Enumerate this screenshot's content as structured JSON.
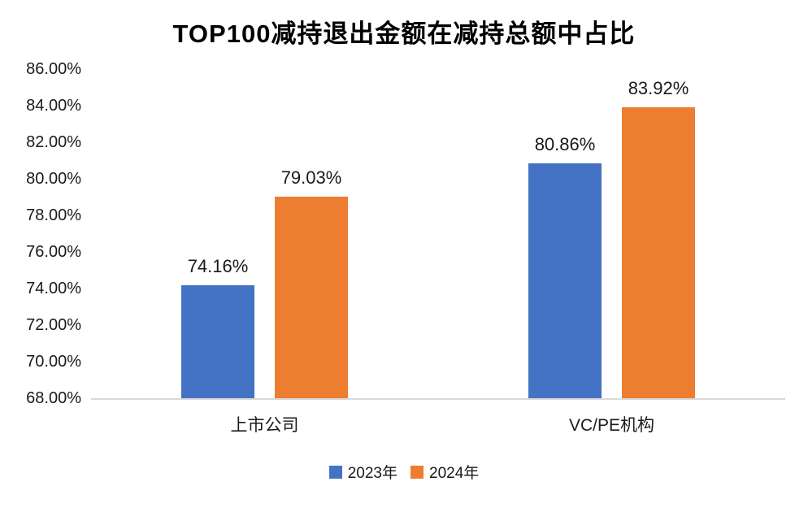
{
  "chart_data": {
    "type": "bar",
    "title": "TOP100减持退出金额在减持总额中占比",
    "categories": [
      "上市公司",
      "VC/PE机构"
    ],
    "series": [
      {
        "name": "2023年",
        "color": "#4472C4",
        "values": [
          74.16,
          80.86
        ],
        "value_labels": [
          "74.16%",
          "80.86%"
        ]
      },
      {
        "name": "2024年",
        "color": "#ED7D31",
        "values": [
          79.03,
          83.92
        ],
        "value_labels": [
          "79.03%",
          "83.92%"
        ]
      }
    ],
    "xlabel": "",
    "ylabel": "",
    "ylim": [
      68,
      86
    ],
    "ytick_step": 2,
    "ytick_labels": [
      "86.00%",
      "84.00%",
      "82.00%",
      "80.00%",
      "78.00%",
      "76.00%",
      "74.00%",
      "72.00%",
      "70.00%",
      "68.00%"
    ],
    "grid": false,
    "legend_position": "bottom",
    "axis_line_color": "#d9d9d9",
    "text_color": "#1a1a1a"
  }
}
